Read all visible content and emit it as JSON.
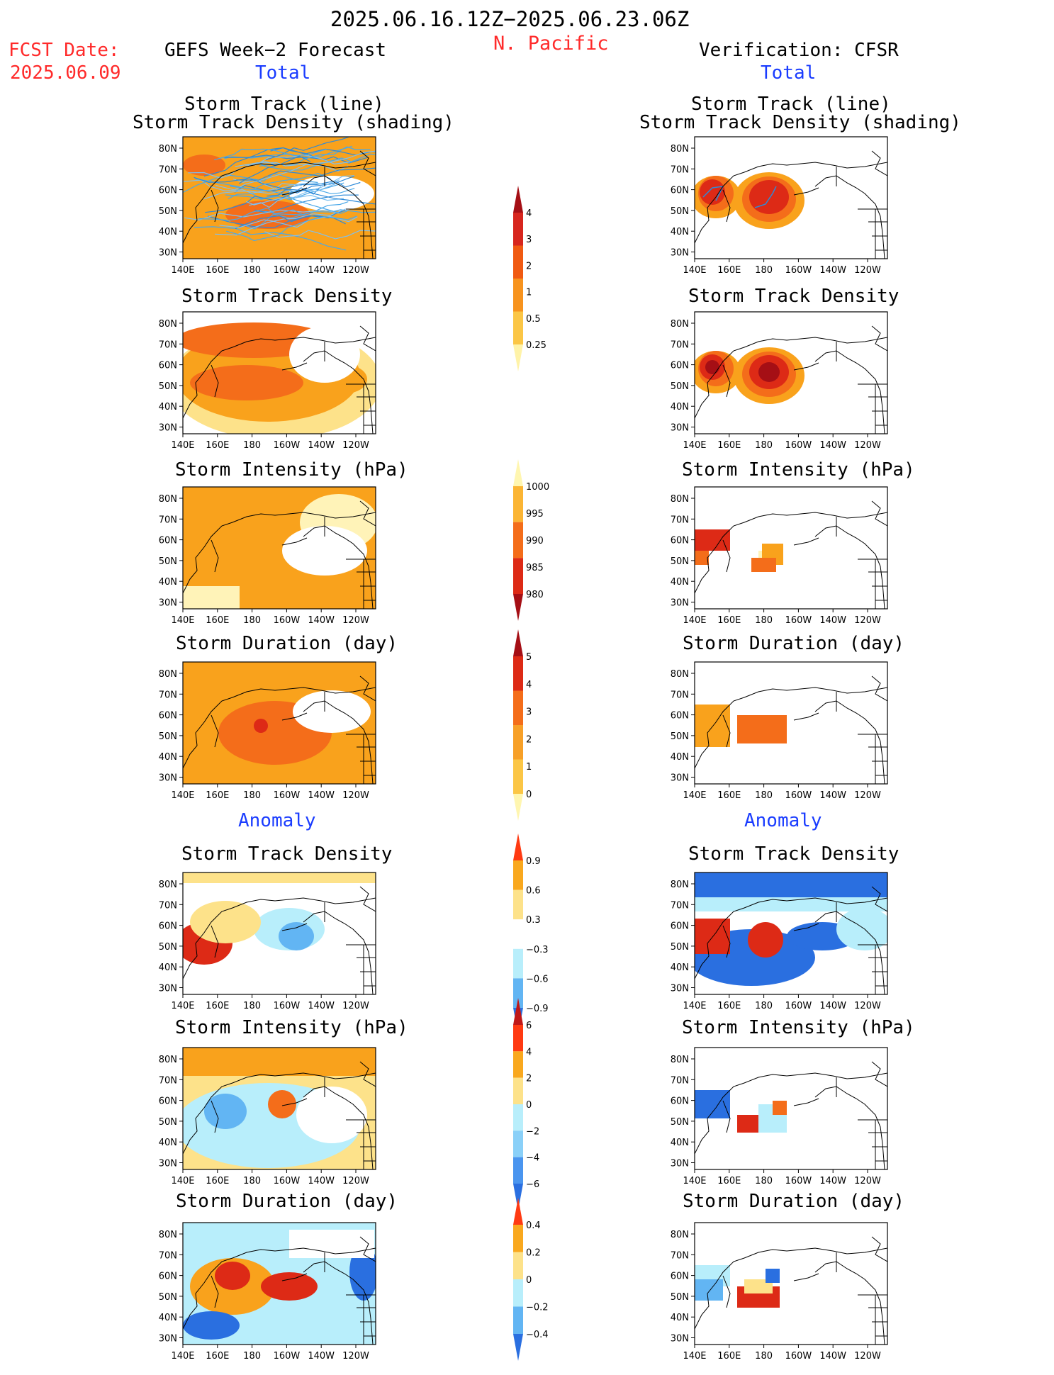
{
  "header": {
    "date_range": "2025.06.16.12Z−2025.06.23.06Z",
    "region": "N. Pacific",
    "fcst_label": "FCST Date:",
    "fcst_date": "2025.06.09",
    "left_title": "GEFS Week−2 Forecast",
    "right_title": "Verification: CFSR",
    "total_label": "Total",
    "anomaly_label": "Anomaly"
  },
  "panel_titles": {
    "track_line": "Storm Track (line)",
    "track_shading": "Storm Track Density (shading)",
    "density": "Storm Track Density",
    "intensity": "Storm Intensity (hPa)",
    "duration": "Storm Duration (day)"
  },
  "axes": {
    "lat_labels": [
      "80N",
      "70N",
      "60N",
      "50N",
      "40N",
      "30N"
    ],
    "lon_labels": [
      "140E",
      "160E",
      "180",
      "160W",
      "140W",
      "120W"
    ]
  },
  "colorbars": [
    {
      "id": "density",
      "labels": [
        "4",
        "3",
        "2",
        "1",
        "0.5",
        "0.25"
      ],
      "colors": [
        "#a50f15",
        "#d7261e",
        "#f05a12",
        "#f7931e",
        "#fbc646",
        "#fff3a8"
      ]
    },
    {
      "id": "intensity",
      "labels": [
        "1000",
        "995",
        "990",
        "985",
        "980"
      ],
      "colors": [
        "#fff6b0",
        "#fbb534",
        "#f46d1a",
        "#dd2a16",
        "#a50f15"
      ]
    },
    {
      "id": "duration",
      "labels": [
        "5",
        "4",
        "3",
        "2",
        "1",
        "0"
      ],
      "colors": [
        "#a50f15",
        "#dd2a16",
        "#f46d1a",
        "#f7a028",
        "#fbc646",
        "#fff6b0"
      ]
    },
    {
      "id": "density_anom",
      "labels": [
        "0.9",
        "0.6",
        "0.3",
        "−0.3",
        "−0.6",
        "−0.9"
      ],
      "colors": [
        "#ff3a12",
        "#f9a81e",
        "#fde28a",
        "#ffffff",
        "#b8eefb",
        "#62b5f3",
        "#2a6fe0"
      ]
    },
    {
      "id": "intensity_anom",
      "labels": [
        "6",
        "4",
        "2",
        "0",
        "−2",
        "−4",
        "−6"
      ],
      "colors": [
        "#c01818",
        "#ff3a12",
        "#f9a81e",
        "#fde28a",
        "#b8eefb",
        "#8ad0f8",
        "#4a95ef",
        "#2a6fe0"
      ]
    },
    {
      "id": "duration_anom",
      "labels": [
        "0.4",
        "0.2",
        "0",
        "−0.2",
        "−0.4"
      ],
      "colors": [
        "#ff3a12",
        "#f9a81e",
        "#fde28a",
        "#b8eefb",
        "#62b5f3",
        "#2a6fe0"
      ]
    }
  ]
}
